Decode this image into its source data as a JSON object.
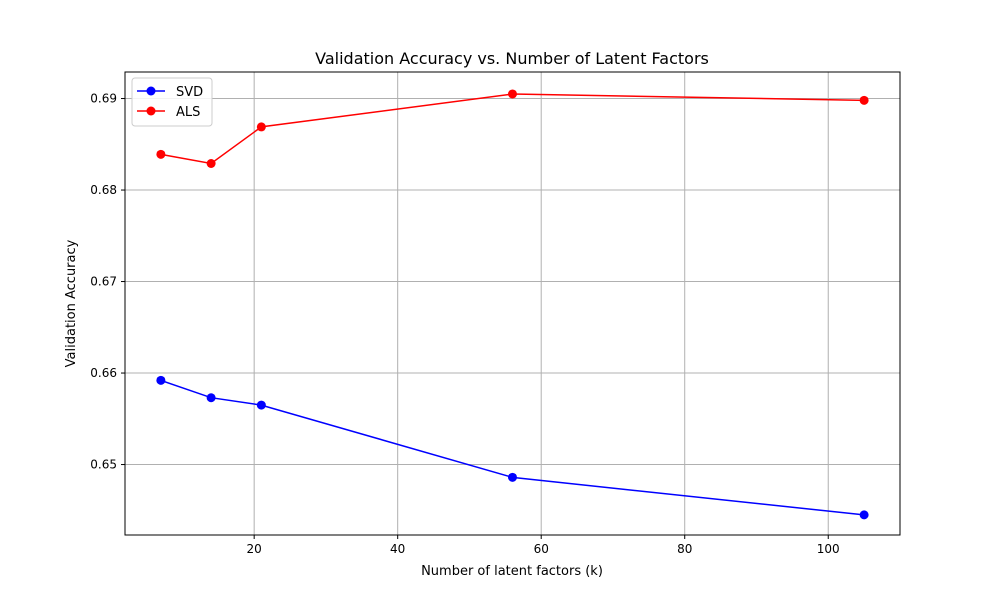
{
  "chart_data": {
    "type": "line",
    "title": "Validation Accuracy vs. Number of Latent Factors",
    "xlabel": "Number of latent factors (k)",
    "ylabel": "Validation Accuracy",
    "xlim": [
      2,
      110
    ],
    "ylim": [
      0.6423,
      0.6929
    ],
    "xticks": [
      20,
      40,
      60,
      80,
      100
    ],
    "yticks": [
      0.65,
      0.66,
      0.67,
      0.68,
      0.69
    ],
    "grid": true,
    "legend_position": "top-left",
    "series": [
      {
        "name": "SVD",
        "color": "#0000ff",
        "marker": "circle",
        "x": [
          7,
          14,
          21,
          56,
          105
        ],
        "y": [
          0.6592,
          0.6573,
          0.6565,
          0.6486,
          0.6445
        ]
      },
      {
        "name": "ALS",
        "color": "#ff0000",
        "marker": "circle",
        "x": [
          7,
          14,
          21,
          56,
          105
        ],
        "y": [
          0.6839,
          0.6829,
          0.6869,
          0.6905,
          0.6898
        ]
      }
    ]
  }
}
